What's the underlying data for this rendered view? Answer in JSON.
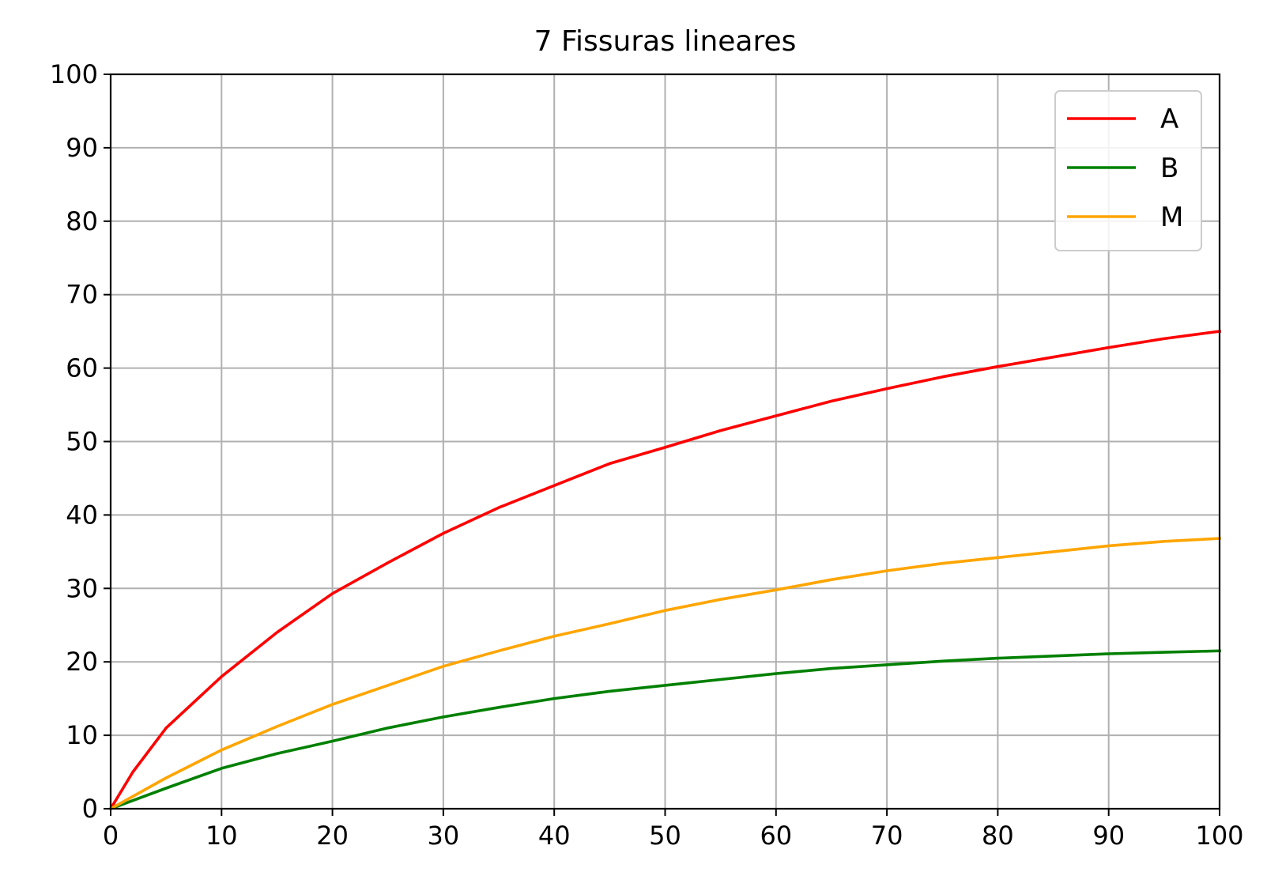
{
  "chart_data": {
    "type": "line",
    "title": "7 Fissuras lineares",
    "xlabel": "",
    "ylabel": "",
    "xlim": [
      0,
      100
    ],
    "ylim": [
      0,
      100
    ],
    "xticks": [
      "0",
      "10",
      "20",
      "30",
      "40",
      "50",
      "60",
      "70",
      "80",
      "90",
      "100"
    ],
    "yticks": [
      "0",
      "10",
      "20",
      "30",
      "40",
      "50",
      "60",
      "70",
      "80",
      "90",
      "100"
    ],
    "grid": true,
    "legend_position": "top-right",
    "series": [
      {
        "name": "A",
        "color": "#ff0000",
        "x": [
          0,
          2,
          5,
          10,
          15,
          20,
          25,
          30,
          35,
          40,
          45,
          50,
          55,
          60,
          65,
          70,
          75,
          80,
          85,
          90,
          95,
          100
        ],
        "y": [
          0,
          5,
          11,
          18,
          24,
          29.3,
          33.5,
          37.5,
          41,
          44,
          47,
          49.2,
          51.5,
          53.5,
          55.5,
          57.2,
          58.8,
          60.2,
          61.5,
          62.8,
          64,
          65
        ]
      },
      {
        "name": "B",
        "color": "#008000",
        "x": [
          0,
          5,
          10,
          15,
          20,
          25,
          30,
          35,
          40,
          45,
          50,
          55,
          60,
          65,
          70,
          75,
          80,
          85,
          90,
          95,
          100
        ],
        "y": [
          0,
          2.8,
          5.5,
          7.5,
          9.2,
          11,
          12.5,
          13.8,
          15,
          16,
          16.8,
          17.6,
          18.4,
          19.1,
          19.6,
          20.1,
          20.5,
          20.8,
          21.1,
          21.3,
          21.5
        ]
      },
      {
        "name": "M",
        "color": "#ffa500",
        "x": [
          0,
          5,
          10,
          15,
          20,
          25,
          30,
          35,
          40,
          45,
          50,
          55,
          60,
          65,
          70,
          75,
          80,
          85,
          90,
          95,
          100
        ],
        "y": [
          0,
          4.2,
          8,
          11.2,
          14.2,
          16.8,
          19.4,
          21.5,
          23.5,
          25.2,
          27,
          28.5,
          29.8,
          31.2,
          32.4,
          33.4,
          34.2,
          35,
          35.8,
          36.4,
          36.8
        ]
      }
    ]
  }
}
